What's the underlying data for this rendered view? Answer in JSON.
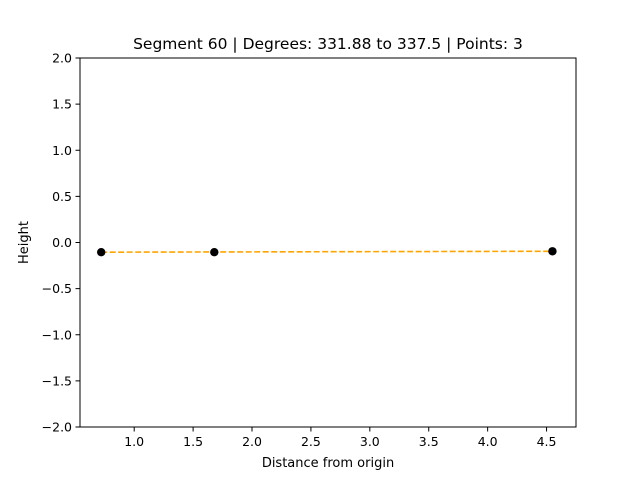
{
  "chart_data": {
    "type": "line",
    "title": "Segment 60 | Degrees: 331.88 to 337.5 | Points: 3",
    "xlabel": "Distance from origin",
    "ylabel": "Height",
    "xlim": [
      0.54,
      4.75
    ],
    "ylim": [
      -2.0,
      2.0
    ],
    "x_ticks": [
      1.0,
      1.5,
      2.0,
      2.5,
      3.0,
      3.5,
      4.0,
      4.5
    ],
    "x_tick_labels": [
      "1.0",
      "1.5",
      "2.0",
      "2.5",
      "3.0",
      "3.5",
      "4.0",
      "4.5"
    ],
    "y_ticks": [
      2.0,
      1.5,
      1.0,
      0.5,
      0.0,
      -0.5,
      -1.0,
      -1.5,
      -2.0
    ],
    "y_tick_labels": [
      "2.0",
      "1.5",
      "1.0",
      "0.5",
      "0.0",
      "−0.5",
      "−1.0",
      "−1.5",
      "−2.0"
    ],
    "grid": false,
    "series": [
      {
        "kind": "fit-line",
        "style": "dashed",
        "color": "#FFA500",
        "x": [
          0.72,
          4.55
        ],
        "y": [
          -0.105,
          -0.095
        ]
      },
      {
        "kind": "points",
        "marker": "circle",
        "color": "#000000",
        "x": [
          0.72,
          1.68,
          4.55
        ],
        "y": [
          -0.105,
          -0.105,
          -0.095
        ]
      }
    ]
  }
}
